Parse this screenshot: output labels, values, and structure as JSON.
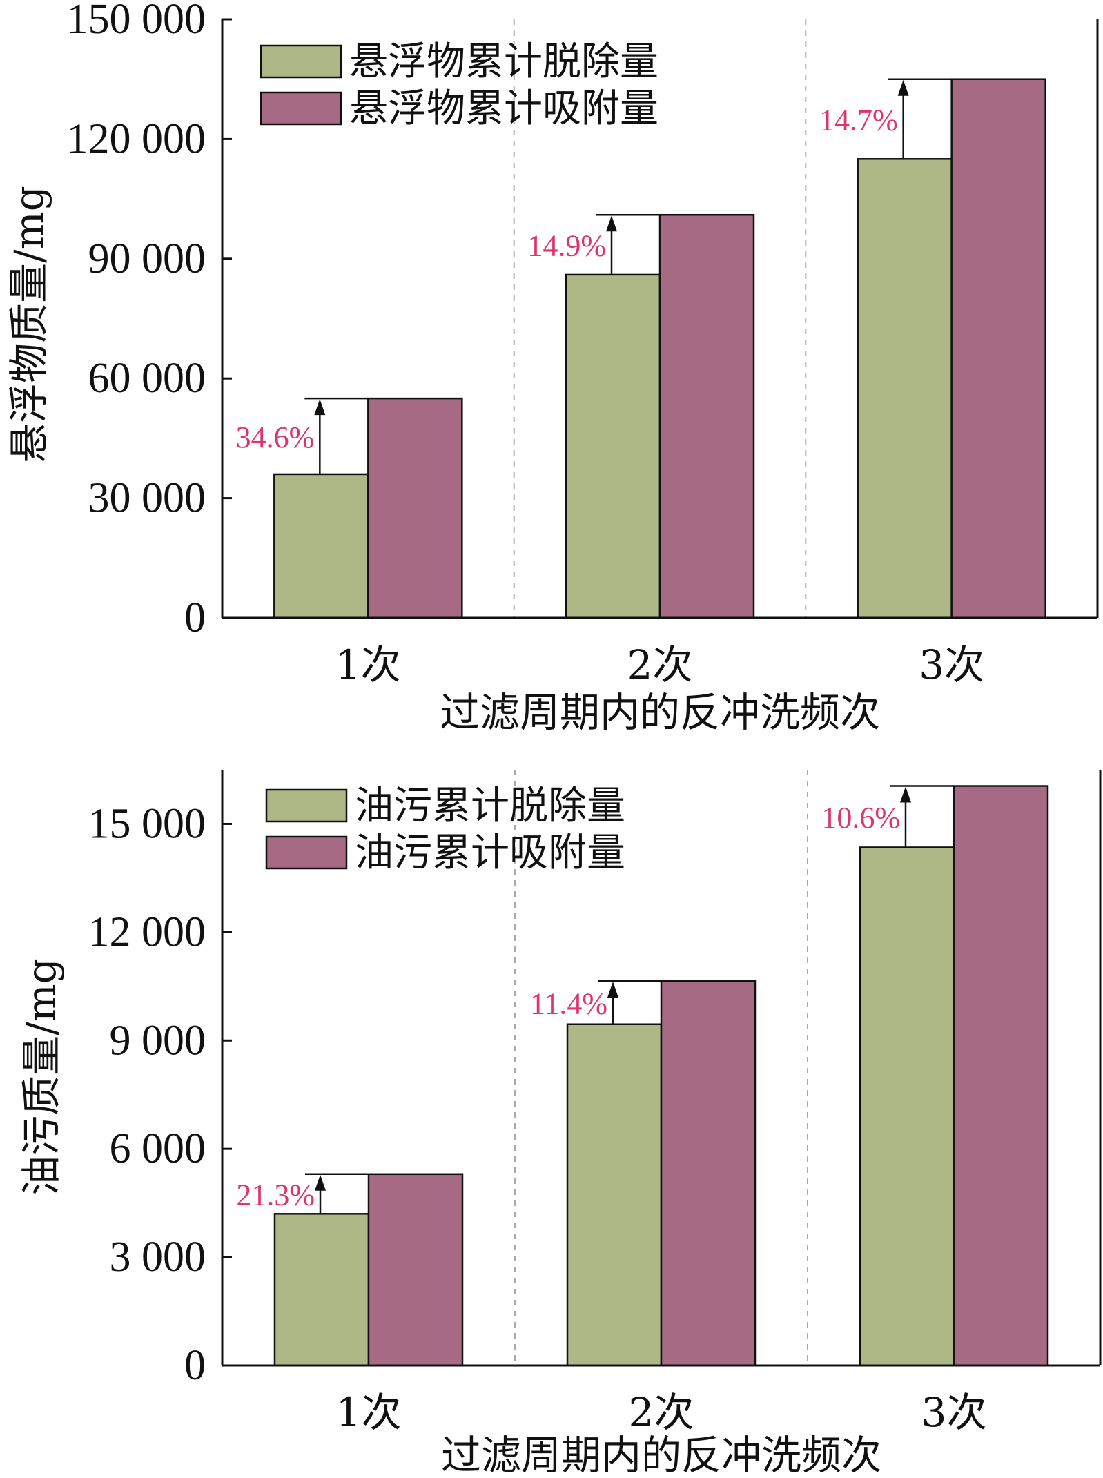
{
  "colors": {
    "series1": "#aeb887",
    "series2": "#a76a84",
    "annotation": "#e0336c",
    "axis": "#111111",
    "divider": "#aaaaaa"
  },
  "chart_data": [
    {
      "type": "bar",
      "categories": [
        "1次",
        "2次",
        "3次"
      ],
      "series": [
        {
          "name": "悬浮物累计脱除量",
          "values": [
            36000,
            86000,
            115000
          ]
        },
        {
          "name": "悬浮物累计吸附量",
          "values": [
            55000,
            101000,
            135000
          ]
        }
      ],
      "annotations": [
        "34.6%",
        "14.9%",
        "14.7%"
      ],
      "yticks": [
        "0",
        "30 000",
        "60 000",
        "90 000",
        "120 000",
        "150 000"
      ],
      "ylim": [
        0,
        150000
      ],
      "xlabel": "过滤周期内的反冲洗频次",
      "ylabel": "悬浮物质量/mg",
      "legend": "top-left",
      "grid": false
    },
    {
      "type": "bar",
      "categories": [
        "1次",
        "2次",
        "3次"
      ],
      "series": [
        {
          "name": "油污累计脱除量",
          "values": [
            4200,
            9450,
            14350
          ]
        },
        {
          "name": "油污累计吸附量",
          "values": [
            5300,
            10650,
            16050
          ]
        }
      ],
      "annotations": [
        "21.3%",
        "11.4%",
        "10.6%"
      ],
      "yticks": [
        "0",
        "3 000",
        "6 000",
        "9 000",
        "12 000",
        "15 000"
      ],
      "ylim": [
        0,
        16500
      ],
      "xlabel": "过滤周期内的反冲洗频次",
      "ylabel": "油污质量/mg",
      "legend": "top-left",
      "grid": false
    }
  ]
}
